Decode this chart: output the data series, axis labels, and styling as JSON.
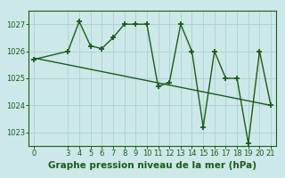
{
  "xlabel": "Graphe pression niveau de la mer (hPa)",
  "bg_color": "#cde8e8",
  "grid_color": "#b0d4d4",
  "line_color": "#1a5c1a",
  "x_data": [
    0,
    3,
    4,
    5,
    6,
    7,
    8,
    9,
    10,
    11,
    12,
    13,
    14,
    15,
    16,
    17,
    18,
    19,
    20,
    21
  ],
  "y_data": [
    1025.7,
    1026.0,
    1027.1,
    1026.2,
    1026.1,
    1026.5,
    1027.0,
    1027.0,
    1027.0,
    1024.7,
    1024.85,
    1027.0,
    1026.0,
    1023.2,
    1026.0,
    1025.0,
    1025.0,
    1022.6,
    1026.0,
    1024.0
  ],
  "trend_x": [
    0,
    21
  ],
  "trend_y": [
    1025.75,
    1024.0
  ],
  "xlim": [
    -0.5,
    21.5
  ],
  "ylim": [
    1022.5,
    1027.5
  ],
  "yticks": [
    1023,
    1024,
    1025,
    1026,
    1027
  ],
  "xticks": [
    0,
    3,
    4,
    5,
    6,
    7,
    8,
    9,
    10,
    11,
    12,
    13,
    14,
    15,
    16,
    17,
    18,
    19,
    20,
    21
  ],
  "marker": "+",
  "markersize": 5,
  "markeredgewidth": 1.3,
  "linewidth": 1.0,
  "xlabel_fontsize": 7.5,
  "tick_fontsize": 6.0
}
